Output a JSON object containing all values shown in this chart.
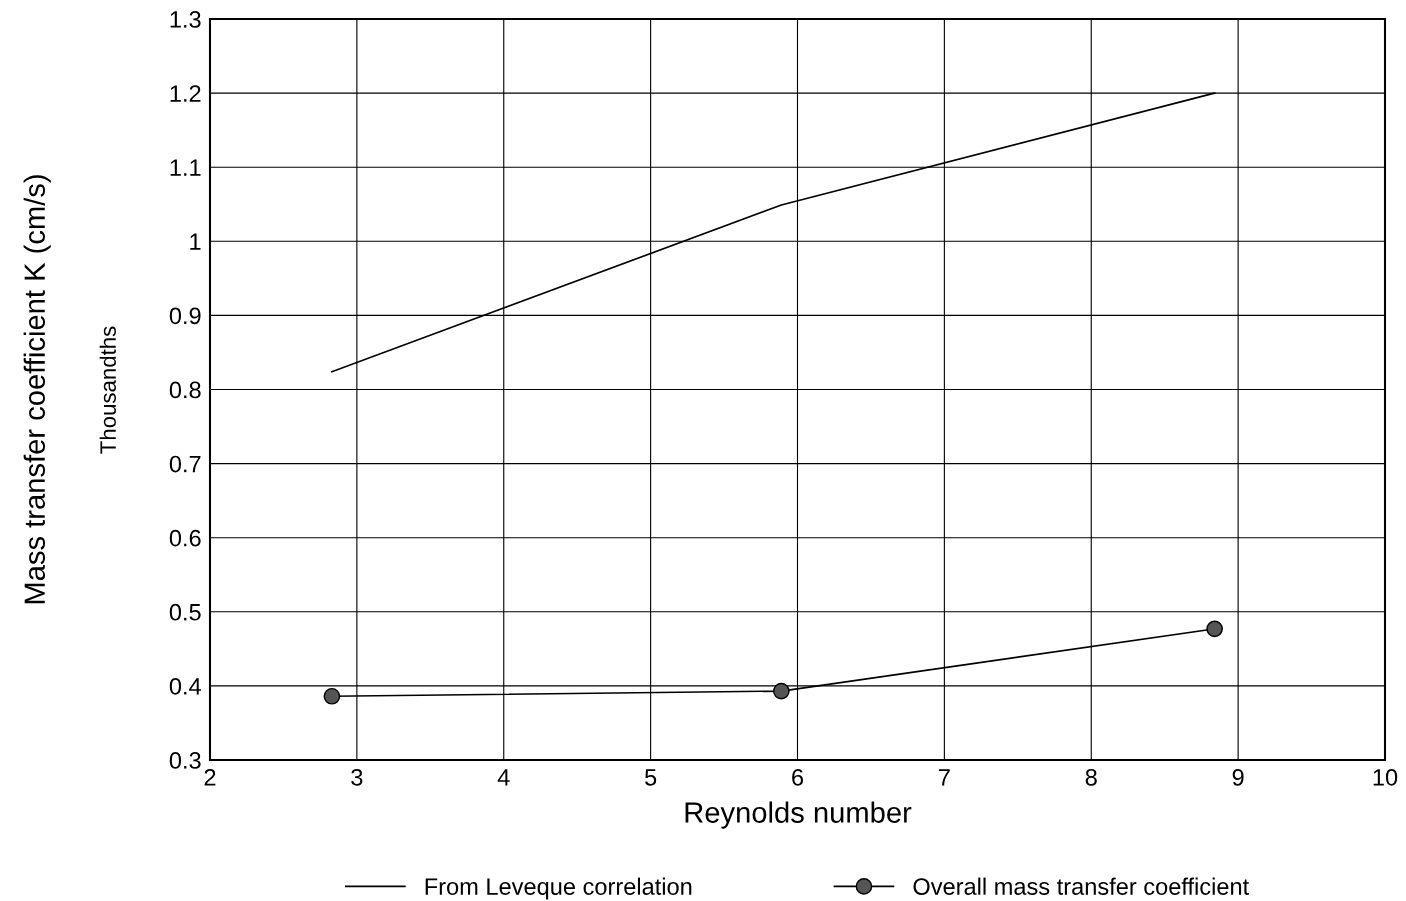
{
  "chart_data": {
    "type": "line",
    "xlabel": "Reynolds number",
    "ylabel": "Mass transfer coefficient K (cm/s)",
    "annotations": [
      "Thousandths"
    ],
    "x": [
      2.83,
      5.89,
      8.84
    ],
    "series": [
      {
        "name": "From Leveque correlation",
        "color": "#000000",
        "values": [
          0.824,
          1.049,
          1.2
        ],
        "marker": "none"
      },
      {
        "name": "Overall mass transfer coefficient",
        "color": "#000000",
        "values": [
          0.386,
          0.393,
          0.477
        ],
        "marker": "circle"
      }
    ],
    "xlim": [
      2,
      10
    ],
    "xticks": [
      2,
      3,
      4,
      5,
      6,
      7,
      8,
      9,
      10
    ],
    "ylim": [
      0.3,
      1.3
    ],
    "yticks": [
      0.3,
      0.4,
      0.5,
      0.6,
      0.7,
      0.8,
      0.9,
      1,
      1.1,
      1.2,
      1.3
    ],
    "grid": true,
    "legend": "bottom",
    "line_style": "solid"
  }
}
